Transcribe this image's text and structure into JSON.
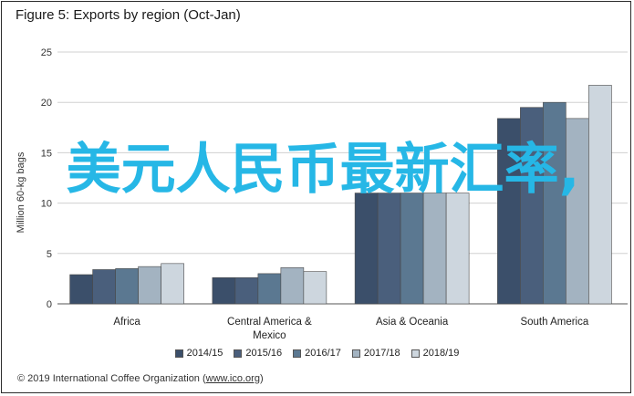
{
  "header": {
    "title": "Figure 5: Exports by region (Oct-Jan)"
  },
  "overlay_text": "美元人民币最新汇率,",
  "footer": {
    "prefix": "© 2019 International Coffee Organization (",
    "link": "www.ico.org",
    "suffix": ")"
  },
  "chart_data": {
    "type": "bar",
    "title": "Figure 5: Exports by region (Oct-Jan)",
    "xlabel": "",
    "ylabel": "Million 60-kg bags",
    "ylim": [
      0,
      25
    ],
    "yticks": [
      0,
      5,
      10,
      15,
      20,
      25
    ],
    "grid": true,
    "legend_position": "bottom",
    "categories": [
      "Africa",
      "Central America & Mexico",
      "Asia & Oceania",
      "South America"
    ],
    "category_lines": [
      [
        "Africa"
      ],
      [
        "Central America &",
        "Mexico"
      ],
      [
        "Asia & Oceania"
      ],
      [
        "South America"
      ]
    ],
    "series": [
      {
        "name": "2014/15",
        "color": "#3b4f6a",
        "values": [
          2.9,
          2.6,
          11.0,
          18.4
        ]
      },
      {
        "name": "2015/16",
        "color": "#4a5f7c",
        "values": [
          3.4,
          2.6,
          11.0,
          19.5
        ]
      },
      {
        "name": "2016/17",
        "color": "#5b7891",
        "values": [
          3.5,
          3.0,
          11.0,
          20.0
        ]
      },
      {
        "name": "2017/18",
        "color": "#a3b3c1",
        "values": [
          3.7,
          3.6,
          11.0,
          18.4
        ]
      },
      {
        "name": "2018/19",
        "color": "#cdd6de",
        "values": [
          4.0,
          3.2,
          11.0,
          21.7
        ]
      }
    ]
  }
}
